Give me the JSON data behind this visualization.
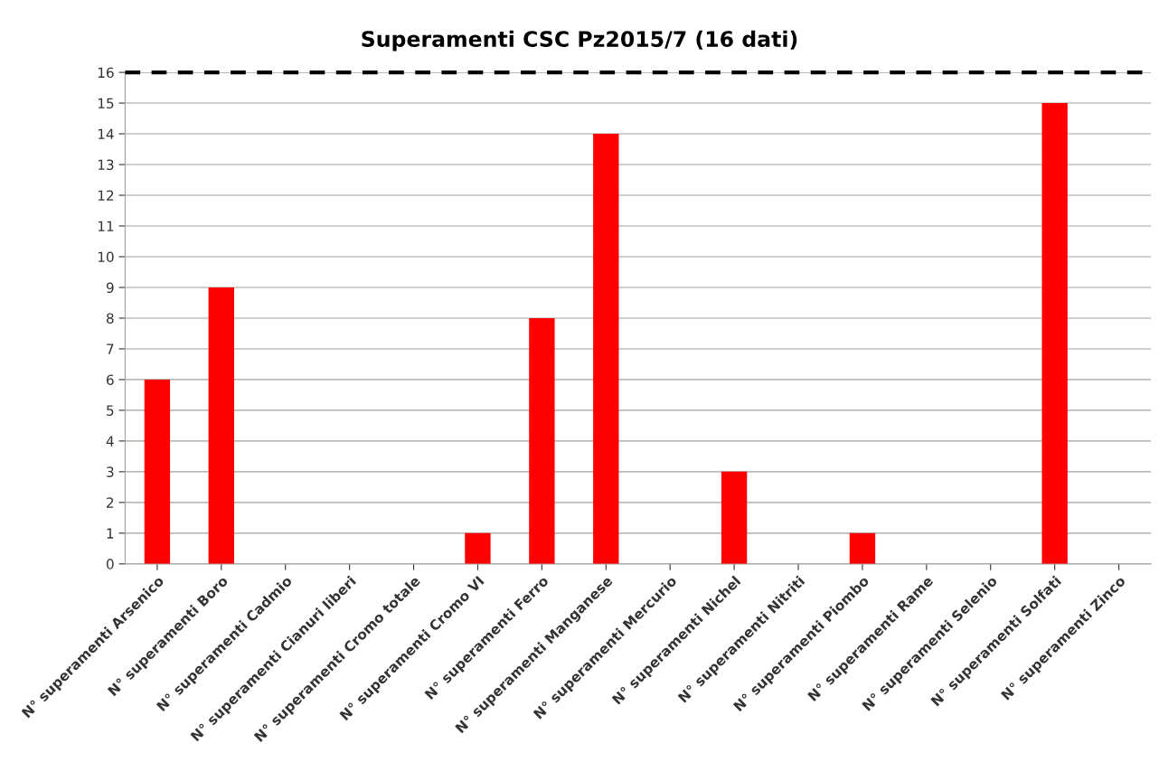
{
  "chart_data": {
    "type": "bar",
    "title": "Superamenti CSC Pz2015/7 (16 dati)",
    "categories": [
      "N° superamenti Arsenico",
      "N° superamenti Boro",
      "N° superamenti Cadmio",
      "N° superamenti Cianuri liberi",
      "N° superamenti Cromo totale",
      "N° superamenti Cromo VI",
      "N° superamenti Ferro",
      "N° superamenti Manganese",
      "N° superamenti Mercurio",
      "N° superamenti Nichel",
      "N° superamenti Nitriti",
      "N° superamenti Piombo",
      "N° superamenti Rame",
      "N° superamenti Selenio",
      "N° superamenti Solfati",
      "N° superamenti Zinco"
    ],
    "values": [
      6,
      9,
      0,
      0,
      0,
      1,
      8,
      14,
      0,
      3,
      0,
      1,
      0,
      0,
      15,
      0
    ],
    "color": "#ff0000",
    "ylim": [
      0,
      16
    ],
    "yticks": [
      0,
      1,
      2,
      3,
      4,
      5,
      6,
      7,
      8,
      9,
      10,
      11,
      12,
      13,
      14,
      15,
      16
    ],
    "grid": "y",
    "ref_lines": [
      {
        "axis": "y",
        "value": 16,
        "color": "#000000",
        "line_style": "dashed"
      }
    ]
  }
}
